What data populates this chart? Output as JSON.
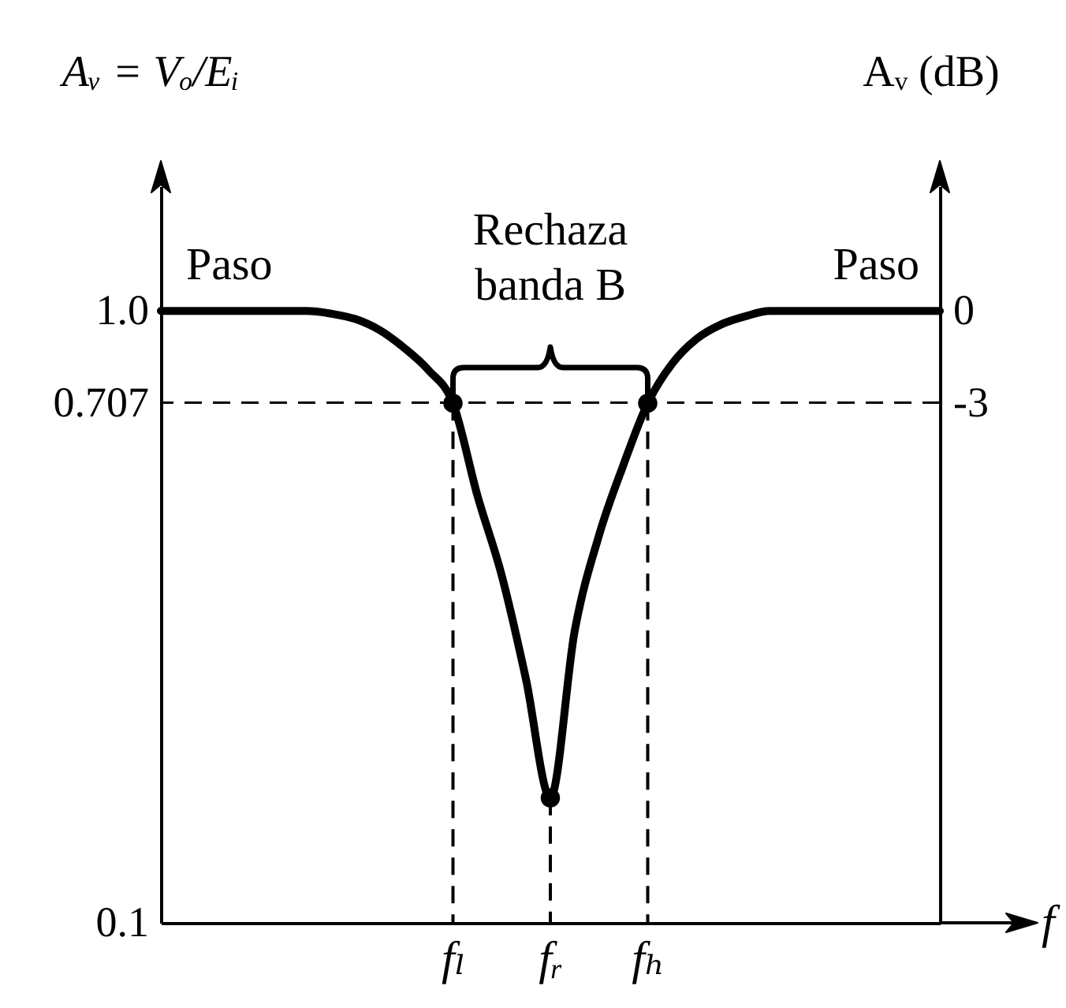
{
  "chart_data": {
    "type": "line",
    "xlabel": "f",
    "ylabel": "Aᵥ = Vₒ/Eᵢ",
    "y2label": "Aᵥ (dB)",
    "log": "y",
    "categories": [
      null,
      null,
      null,
      null,
      null,
      null,
      null,
      null,
      null,
      null,
      null,
      null,
      "fₗ",
      null,
      null,
      null,
      "fᵣ",
      null,
      null,
      null,
      "fₕ",
      null,
      null,
      null,
      null,
      null,
      null,
      null,
      null,
      null,
      null,
      null,
      null
    ],
    "ylim": [
      0.1,
      1.6
    ],
    "y2lim": [
      -20,
      4.08
    ],
    "yticks": [
      {
        "value": 1,
        "label": "1.0"
      },
      0.707,
      0.1
    ],
    "y2ticks": [
      0,
      -3
    ],
    "series": [
      {
        "color": "#000000",
        "values": [
          1,
          1,
          1,
          1,
          1,
          1,
          1,
          0.99,
          0.97,
          0.93,
          0.87,
          0.8,
          0.707,
          0.5,
          0.37,
          0.25,
          0.16,
          0.3,
          0.43,
          0.56,
          0.707,
          0.82,
          0.9,
          0.95,
          0.98,
          1,
          1,
          1,
          1,
          1,
          1,
          1,
          1
        ]
      },
      {
        "type": "lollipop",
        "color": "#000000",
        "marker": "circle",
        "line_style": "dashed",
        "values": [
          null,
          null,
          null,
          null,
          null,
          null,
          null,
          null,
          null,
          null,
          null,
          null,
          0.707,
          null,
          null,
          null,
          0.16,
          null,
          null,
          null,
          0.707,
          null,
          null,
          null,
          null,
          null,
          null,
          null,
          null,
          null,
          null,
          null,
          null
        ]
      }
    ],
    "ref_lines": [
      {
        "axis": "y2",
        "value": -3,
        "line_style": "dashed",
        "color": "#000000"
      }
    ],
    "annotations": [
      "Paso",
      "Rechaza banda B",
      "Paso"
    ]
  }
}
